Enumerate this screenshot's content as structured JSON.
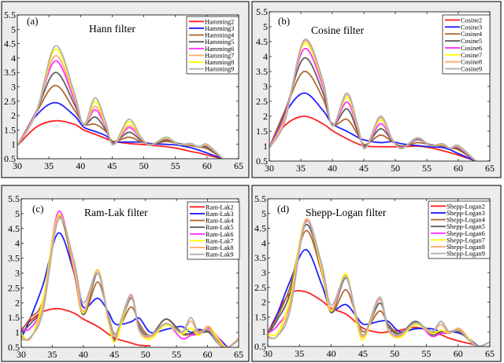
{
  "chart_data": [
    {
      "type": "line",
      "panel_label": "(a)",
      "title": "Hann filter",
      "xlim": [
        30,
        65
      ],
      "ylim": [
        0.5,
        5.5
      ],
      "xticks": [
        "30",
        "35",
        "40",
        "45",
        "50",
        "55",
        "60",
        "65"
      ],
      "yticks": [
        "0.5",
        "1",
        "1.5",
        "2",
        "2.5",
        "3",
        "3.5",
        "4",
        "4.5",
        "5",
        "5.5"
      ],
      "legend": "top-right",
      "x": [
        30,
        33,
        36,
        39,
        40.5,
        42.3,
        44,
        45.2,
        47.6,
        49.5,
        51,
        53.5,
        55.5,
        57.5,
        58.7,
        60,
        62.5
      ],
      "series": [
        {
          "name": "Hamming2",
          "color": "#ff2020",
          "values": [
            0.95,
            1.6,
            1.82,
            1.7,
            1.5,
            1.35,
            1.2,
            1.1,
            1.03,
            1.0,
            0.97,
            0.92,
            0.85,
            0.75,
            0.7,
            0.63,
            0.5
          ]
        },
        {
          "name": "Hamming3",
          "color": "#2020ff",
          "values": [
            0.95,
            2.0,
            2.45,
            2.0,
            1.6,
            1.45,
            1.3,
            1.1,
            1.08,
            1.08,
            1.03,
            1.0,
            0.97,
            0.88,
            0.8,
            0.7,
            0.5
          ]
        },
        {
          "name": "Hamming4",
          "color": "#b06a30",
          "values": [
            0.95,
            2.1,
            3.05,
            2.2,
            1.7,
            1.7,
            1.45,
            1.1,
            1.25,
            1.1,
            1.0,
            1.1,
            1.02,
            0.95,
            0.9,
            0.85,
            0.5
          ]
        },
        {
          "name": "Hamming5",
          "color": "#606060",
          "values": [
            0.95,
            2.15,
            3.5,
            2.4,
            1.7,
            1.95,
            1.5,
            1.05,
            1.42,
            1.15,
            1.0,
            1.15,
            1.03,
            0.98,
            0.92,
            0.9,
            0.5
          ]
        },
        {
          "name": "Hamming6",
          "color": "#ff30ff",
          "values": [
            0.95,
            2.15,
            3.9,
            2.55,
            1.68,
            2.2,
            1.6,
            1.0,
            1.58,
            1.2,
            0.98,
            1.2,
            1.0,
            1.0,
            0.9,
            0.95,
            0.5
          ]
        },
        {
          "name": "Hamming7",
          "color": "#ffaa70",
          "values": [
            0.95,
            2.12,
            4.08,
            2.65,
            1.68,
            2.32,
            1.65,
            0.99,
            1.65,
            1.22,
            0.97,
            1.22,
            1.0,
            1.0,
            0.9,
            0.97,
            0.5
          ]
        },
        {
          "name": "Hamming8",
          "color": "#ffff00",
          "values": [
            0.95,
            2.1,
            4.3,
            2.75,
            1.68,
            2.5,
            1.7,
            0.98,
            1.78,
            1.25,
            0.97,
            1.22,
            1.0,
            1.02,
            0.9,
            0.98,
            0.5
          ]
        },
        {
          "name": "Hamming9",
          "color": "#b0b0b0",
          "values": [
            0.95,
            2.1,
            4.42,
            2.8,
            1.68,
            2.62,
            1.75,
            0.98,
            1.87,
            1.27,
            0.97,
            1.25,
            1.0,
            1.03,
            0.9,
            1.0,
            0.5
          ]
        }
      ]
    },
    {
      "type": "line",
      "panel_label": "(b)",
      "title": "Cosine filter",
      "xlim": [
        30,
        65
      ],
      "ylim": [
        0.5,
        5.5
      ],
      "xticks": [
        "30",
        "35",
        "40",
        "45",
        "50",
        "55",
        "60",
        "65"
      ],
      "yticks": [
        "0.5",
        "1",
        "1.5",
        "2",
        "2.5",
        "3",
        "3.5",
        "4",
        "4.5",
        "5",
        "5.5"
      ],
      "legend": "top-right",
      "x": [
        30,
        32.5,
        35.5,
        38.5,
        40,
        42.3,
        44,
        45.2,
        47.6,
        49.5,
        51,
        53.5,
        55.5,
        57.5,
        58.7,
        60,
        62.8
      ],
      "series": [
        {
          "name": "Cosine2",
          "color": "#ff2020",
          "values": [
            0.95,
            1.7,
            2.0,
            1.75,
            1.52,
            1.25,
            1.08,
            1.0,
            0.98,
            0.98,
            0.98,
            1.0,
            0.95,
            0.85,
            0.78,
            0.7,
            0.5
          ]
        },
        {
          "name": "Cosine3",
          "color": "#2020ff",
          "values": [
            0.95,
            2.1,
            2.78,
            2.2,
            1.75,
            1.5,
            1.3,
            1.2,
            1.12,
            1.15,
            1.08,
            1.02,
            0.98,
            0.95,
            0.88,
            0.75,
            0.5
          ]
        },
        {
          "name": "Cosine4",
          "color": "#b06a30",
          "values": [
            0.95,
            2.2,
            3.5,
            2.6,
            1.72,
            1.9,
            1.4,
            1.05,
            1.37,
            1.15,
            1.0,
            1.12,
            1.05,
            1.0,
            0.93,
            0.88,
            0.5
          ]
        },
        {
          "name": "Cosine5",
          "color": "#606060",
          "values": [
            0.95,
            2.15,
            3.95,
            2.8,
            1.7,
            2.25,
            1.5,
            1.0,
            1.58,
            1.18,
            0.97,
            1.22,
            1.05,
            1.02,
            0.93,
            0.92,
            0.5
          ]
        },
        {
          "name": "Cosine6",
          "color": "#ff30ff",
          "values": [
            0.95,
            2.05,
            4.25,
            3.0,
            1.7,
            2.48,
            1.6,
            0.95,
            1.75,
            1.2,
            0.95,
            1.25,
            1.03,
            1.04,
            0.92,
            0.96,
            0.5
          ]
        },
        {
          "name": "Cosine7",
          "color": "#ffff00",
          "values": [
            0.95,
            1.95,
            4.42,
            3.1,
            1.7,
            2.63,
            1.65,
            0.93,
            1.88,
            1.22,
            0.93,
            1.27,
            1.02,
            1.05,
            0.92,
            0.99,
            0.5
          ]
        },
        {
          "name": "Cosine8",
          "color": "#ffaa70",
          "values": [
            0.95,
            1.9,
            4.5,
            3.15,
            1.68,
            2.72,
            1.7,
            0.92,
            1.95,
            1.23,
            0.92,
            1.28,
            1.02,
            1.07,
            0.92,
            1.0,
            0.5
          ]
        },
        {
          "name": "Cosine9",
          "color": "#b0b0b0",
          "values": [
            0.95,
            1.85,
            4.55,
            3.2,
            1.68,
            2.78,
            1.72,
            0.92,
            2.0,
            1.24,
            0.92,
            1.28,
            1.02,
            1.08,
            0.92,
            1.02,
            0.5
          ]
        }
      ]
    },
    {
      "type": "line",
      "panel_label": "(c)",
      "title": "Ram-Lak filter",
      "xlim": [
        30,
        65
      ],
      "ylim": [
        0.5,
        5.5
      ],
      "xticks": [
        "30",
        "35",
        "40",
        "45",
        "50",
        "55",
        "60",
        "65"
      ],
      "yticks": [
        "0.5",
        "1",
        "1.5",
        "2",
        "2.5",
        "3",
        "3.5",
        "4",
        "4.5",
        "5",
        "5.5"
      ],
      "legend": "top-right",
      "x": [
        30,
        31.5,
        33.5,
        36,
        38.5,
        40,
        42.3,
        44,
        45.2,
        47.6,
        49,
        50.8,
        53.3,
        55.8,
        57.3,
        58.6,
        60.2,
        61.8,
        63.2,
        65
      ],
      "series": [
        {
          "name": "Ram-Lak2",
          "color": "#ff2020",
          "values": [
            1.1,
            1.4,
            1.7,
            1.8,
            1.65,
            1.45,
            1.2,
            0.95,
            0.8,
            0.65,
            0.57,
            0.55,
            null,
            null,
            null,
            null,
            null,
            null,
            null,
            null
          ]
        },
        {
          "name": "Ram-Lak3",
          "color": "#2020ff",
          "values": [
            0.8,
            1.5,
            2.6,
            4.35,
            3.0,
            1.85,
            2.15,
            1.7,
            1.28,
            1.35,
            1.48,
            1.0,
            1.1,
            1.2,
            1.0,
            1.1,
            1.0,
            0.8,
            0.5,
            null
          ]
        },
        {
          "name": "Ram-Lak4",
          "color": "#b06a30",
          "values": [
            1.05,
            1.5,
            2.1,
            4.9,
            3.0,
            1.6,
            2.7,
            1.6,
            0.95,
            1.85,
            1.3,
            0.9,
            1.45,
            0.95,
            0.95,
            1.05,
            1.05,
            0.7,
            0.5,
            0.75
          ]
        },
        {
          "name": "Ram-Lak5",
          "color": "#606060",
          "values": [
            1.0,
            1.3,
            2.0,
            4.9,
            3.2,
            1.6,
            3.0,
            1.5,
            0.8,
            2.15,
            1.2,
            0.88,
            1.45,
            1.0,
            0.95,
            0.95,
            1.0,
            0.6,
            0.5,
            0.75
          ]
        },
        {
          "name": "Ram-Lak6",
          "color": "#ff30ff",
          "values": [
            1.1,
            1.15,
            2.0,
            5.07,
            3.1,
            1.7,
            3.1,
            1.4,
            0.75,
            2.27,
            1.1,
            0.85,
            1.3,
            0.8,
            0.9,
            0.95,
            1.15,
            0.8,
            0.5,
            0.8
          ]
        },
        {
          "name": "Ram-Lak7",
          "color": "#ffff00",
          "values": [
            0.95,
            0.8,
            2.1,
            4.95,
            3.2,
            1.65,
            3.12,
            1.4,
            0.7,
            2.25,
            1.05,
            0.78,
            1.25,
            0.95,
            1.15,
            0.9,
            1.2,
            0.75,
            0.5,
            0.8
          ]
        },
        {
          "name": "Ram-Lak8",
          "color": "#ffaa70",
          "values": [
            0.85,
            0.8,
            1.9,
            4.9,
            3.3,
            1.7,
            3.1,
            1.45,
            0.9,
            2.2,
            1.05,
            0.85,
            1.3,
            1.0,
            1.38,
            0.95,
            1.2,
            0.6,
            0.5,
            0.8
          ]
        },
        {
          "name": "Ram-Lak9",
          "color": "#b0b0b0",
          "values": [
            0.75,
            0.85,
            1.7,
            4.8,
            3.4,
            2.0,
            3.0,
            1.55,
            0.95,
            2.25,
            1.1,
            0.9,
            1.3,
            1.0,
            1.5,
            1.0,
            1.1,
            0.6,
            0.5,
            0.75
          ]
        }
      ]
    },
    {
      "type": "line",
      "panel_label": "(d)",
      "title": "Shepp-Logan filter",
      "xlim": [
        30,
        65
      ],
      "ylim": [
        0.5,
        5.5
      ],
      "xticks": [
        "30",
        "35",
        "40",
        "45",
        "50",
        "55",
        "60",
        "65"
      ],
      "yticks": [
        "0.5",
        "1",
        "1.5",
        "2",
        "2.5",
        "3",
        "3.5",
        "4",
        "4.5",
        "5",
        "5.5"
      ],
      "legend": "top-right",
      "x": [
        30,
        31.5,
        33.5,
        36,
        38.5,
        40,
        42.3,
        44,
        45.2,
        47.6,
        49,
        50.8,
        53.3,
        55.8,
        57.3,
        58.6,
        60.2,
        61.8,
        63.2,
        65
      ],
      "series": [
        {
          "name": "Shepp-Logan2",
          "color": "#ff2020",
          "values": [
            0.95,
            1.6,
            2.3,
            2.35,
            2.05,
            1.8,
            1.6,
            1.3,
            1.1,
            0.97,
            1.0,
            1.05,
            1.15,
            1.0,
            0.9,
            0.78,
            0.68,
            0.6,
            0.52,
            null
          ]
        },
        {
          "name": "Shepp-Logan3",
          "color": "#2020ff",
          "values": [
            0.95,
            1.6,
            2.7,
            3.78,
            2.6,
            1.75,
            1.92,
            1.5,
            1.25,
            1.35,
            1.35,
            1.0,
            1.1,
            1.1,
            1.0,
            1.0,
            0.95,
            0.75,
            0.5,
            null
          ]
        },
        {
          "name": "Shepp-Logan4",
          "color": "#b06a30",
          "values": [
            0.95,
            1.5,
            2.5,
            4.42,
            3.0,
            1.65,
            2.42,
            1.5,
            1.0,
            1.7,
            1.25,
            0.95,
            1.3,
            1.0,
            1.0,
            1.0,
            1.0,
            0.7,
            0.5,
            0.65
          ]
        },
        {
          "name": "Shepp-Logan5",
          "color": "#606060",
          "values": [
            0.9,
            1.4,
            2.3,
            4.62,
            3.1,
            1.65,
            2.82,
            1.45,
            0.9,
            1.97,
            1.2,
            0.92,
            1.35,
            0.9,
            1.0,
            1.0,
            1.05,
            0.7,
            0.5,
            0.65
          ]
        },
        {
          "name": "Shepp-Logan6",
          "color": "#ff30ff",
          "values": [
            0.95,
            1.2,
            2.0,
            4.75,
            3.1,
            1.7,
            2.88,
            1.35,
            0.85,
            2.1,
            1.1,
            0.88,
            1.3,
            0.85,
            0.95,
            0.95,
            1.1,
            0.75,
            0.5,
            0.65
          ]
        },
        {
          "name": "Shepp-Logan7",
          "color": "#ffff00",
          "values": [
            0.95,
            0.95,
            2.1,
            4.8,
            3.1,
            1.7,
            2.97,
            1.3,
            0.75,
            2.15,
            1.05,
            0.8,
            1.25,
            0.95,
            1.05,
            0.95,
            1.1,
            0.75,
            0.5,
            0.65
          ]
        },
        {
          "name": "Shepp-Logan8",
          "color": "#ffaa70",
          "values": [
            0.85,
            0.85,
            1.9,
            4.8,
            3.2,
            1.75,
            2.9,
            1.4,
            0.85,
            2.12,
            1.05,
            0.85,
            1.3,
            1.0,
            1.25,
            0.95,
            1.12,
            0.7,
            0.5,
            0.65
          ]
        },
        {
          "name": "Shepp-Logan9",
          "color": "#b0b0b0",
          "values": [
            0.8,
            0.85,
            1.7,
            4.7,
            3.3,
            1.9,
            2.85,
            1.5,
            0.9,
            2.17,
            1.1,
            0.9,
            1.3,
            1.0,
            1.35,
            1.0,
            1.05,
            0.7,
            0.5,
            0.65
          ]
        }
      ]
    }
  ]
}
